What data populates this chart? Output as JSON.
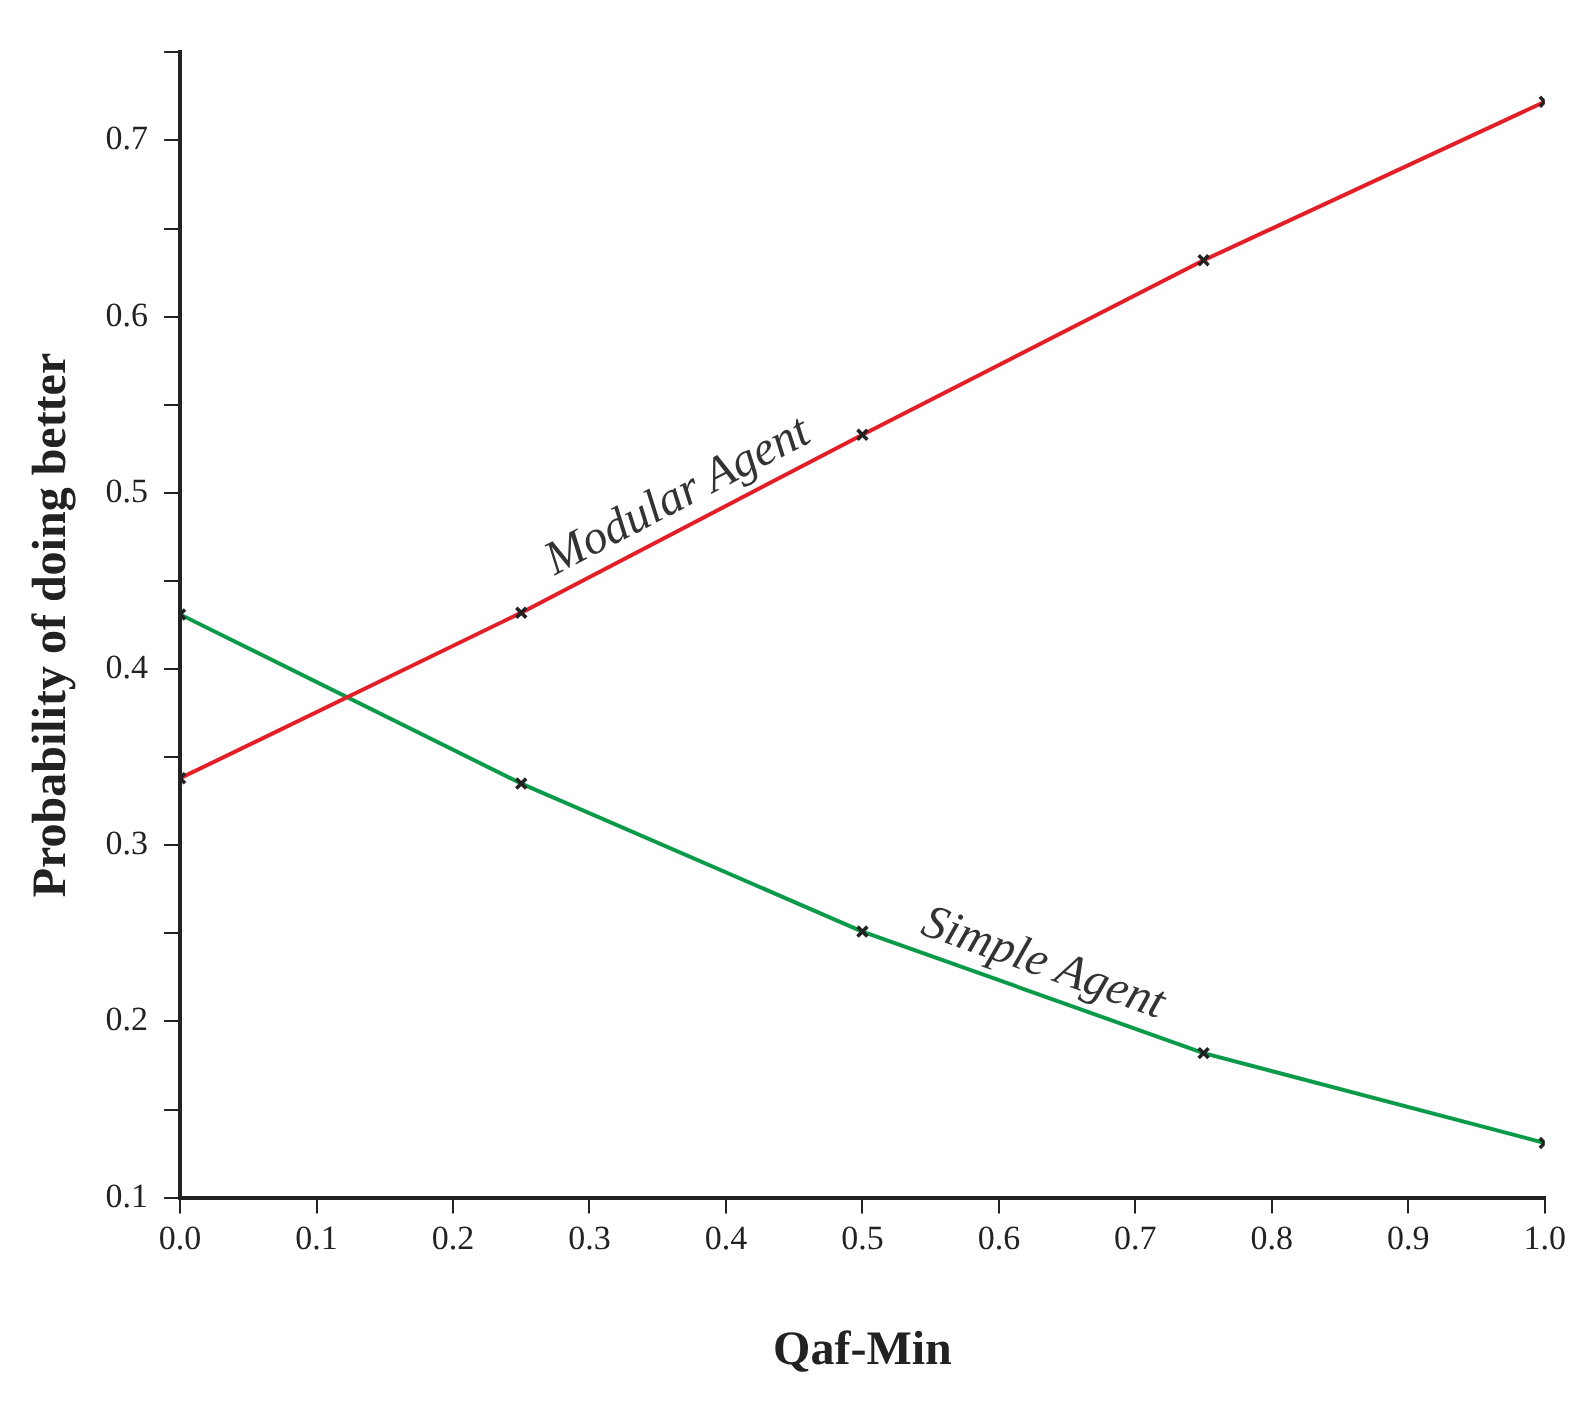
{
  "chart_data": {
    "type": "line",
    "xlabel": "Qaf-Min",
    "ylabel": "Probability of doing better",
    "x": [
      0,
      0.25,
      0.5,
      0.75,
      1.0
    ],
    "series": [
      {
        "name": "Modular Agent",
        "color": "#e41e26",
        "values": [
          0.338,
          0.432,
          0.533,
          0.632,
          0.722
        ]
      },
      {
        "name": "Simple Agent",
        "color": "#0b9a4a",
        "values": [
          0.431,
          0.335,
          0.251,
          0.182,
          0.131
        ]
      }
    ],
    "xlim": [
      0,
      1.0
    ],
    "xticks": [
      {
        "value": 0,
        "label": "0.0"
      },
      0.1,
      0.2,
      0.3,
      0.4,
      0.5,
      0.6,
      0.7,
      0.8,
      0.9,
      {
        "value": 1,
        "label": "1.0"
      }
    ],
    "ylim": [
      0.1,
      0.75
    ],
    "yticks": [
      0.1,
      {
        "value": 0.15,
        "label": null
      },
      0.2,
      {
        "value": 0.25,
        "label": null
      },
      0.3,
      {
        "value": 0.35,
        "label": null
      },
      0.4,
      {
        "value": 0.45,
        "label": null
      },
      0.5,
      {
        "value": 0.55,
        "label": null
      },
      0.6,
      {
        "value": 0.65,
        "label": null
      },
      0.7,
      {
        "value": 0.75,
        "label": null
      }
    ],
    "grid": false,
    "legend": false,
    "marker": "cross",
    "line_style": "solid"
  }
}
